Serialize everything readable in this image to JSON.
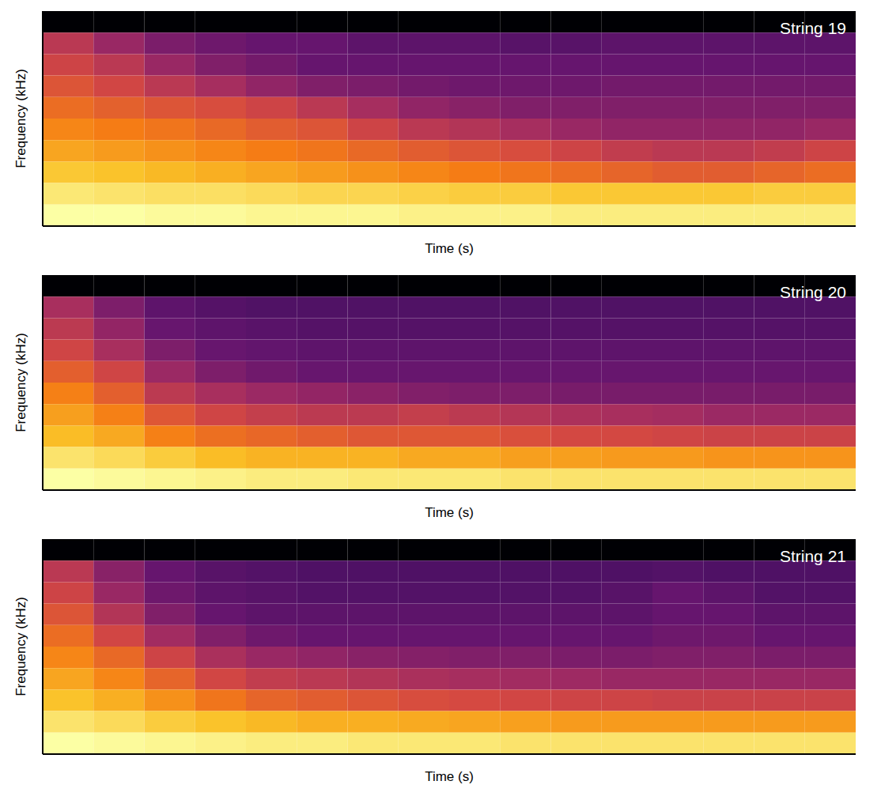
{
  "chart_data": [
    {
      "type": "heatmap",
      "title": "String 19",
      "x_label": "Time (s)",
      "y_label": "Frequency (kHz)",
      "xlim": [
        0,
        16
      ],
      "ylim": [
        0,
        10
      ],
      "tick_labels": false,
      "cells": [
        [
          0.03,
          0.03,
          0.03,
          0.03,
          0.03,
          0.03,
          0.03,
          0.03,
          0.03,
          0.03,
          0.03,
          0.03,
          0.03,
          0.03,
          0.03,
          0.03
        ],
        [
          0.5,
          0.42,
          0.35,
          0.32,
          0.3,
          0.3,
          0.28,
          0.28,
          0.28,
          0.27,
          0.27,
          0.28,
          0.28,
          0.28,
          0.28,
          0.28
        ],
        [
          0.55,
          0.5,
          0.42,
          0.36,
          0.33,
          0.3,
          0.3,
          0.3,
          0.3,
          0.3,
          0.3,
          0.3,
          0.3,
          0.3,
          0.3,
          0.3
        ],
        [
          0.6,
          0.56,
          0.5,
          0.45,
          0.4,
          0.36,
          0.35,
          0.33,
          0.32,
          0.32,
          0.32,
          0.33,
          0.33,
          0.33,
          0.33,
          0.33
        ],
        [
          0.66,
          0.63,
          0.6,
          0.58,
          0.55,
          0.5,
          0.45,
          0.4,
          0.38,
          0.36,
          0.36,
          0.36,
          0.36,
          0.36,
          0.36,
          0.36
        ],
        [
          0.72,
          0.7,
          0.68,
          0.65,
          0.62,
          0.6,
          0.55,
          0.5,
          0.48,
          0.45,
          0.42,
          0.4,
          0.4,
          0.4,
          0.4,
          0.42
        ],
        [
          0.78,
          0.76,
          0.74,
          0.72,
          0.7,
          0.68,
          0.65,
          0.62,
          0.6,
          0.58,
          0.55,
          0.52,
          0.5,
          0.5,
          0.52,
          0.55
        ],
        [
          0.85,
          0.84,
          0.82,
          0.8,
          0.78,
          0.76,
          0.74,
          0.72,
          0.7,
          0.68,
          0.66,
          0.64,
          0.62,
          0.62,
          0.64,
          0.66
        ],
        [
          0.92,
          0.91,
          0.9,
          0.9,
          0.89,
          0.88,
          0.88,
          0.87,
          0.86,
          0.86,
          0.85,
          0.85,
          0.85,
          0.85,
          0.86,
          0.86
        ],
        [
          0.97,
          0.97,
          0.96,
          0.96,
          0.95,
          0.95,
          0.95,
          0.94,
          0.94,
          0.94,
          0.93,
          0.93,
          0.93,
          0.93,
          0.93,
          0.93
        ]
      ]
    },
    {
      "type": "heatmap",
      "title": "String 20",
      "x_label": "Time (s)",
      "y_label": "Frequency (kHz)",
      "xlim": [
        0,
        16
      ],
      "ylim": [
        0,
        10
      ],
      "tick_labels": false,
      "cells": [
        [
          0.03,
          0.03,
          0.03,
          0.03,
          0.03,
          0.03,
          0.03,
          0.03,
          0.03,
          0.03,
          0.03,
          0.03,
          0.03,
          0.03,
          0.03,
          0.03
        ],
        [
          0.45,
          0.35,
          0.28,
          0.26,
          0.25,
          0.25,
          0.25,
          0.25,
          0.25,
          0.25,
          0.25,
          0.25,
          0.25,
          0.25,
          0.25,
          0.25
        ],
        [
          0.5,
          0.4,
          0.3,
          0.28,
          0.27,
          0.26,
          0.26,
          0.26,
          0.26,
          0.26,
          0.26,
          0.26,
          0.26,
          0.26,
          0.26,
          0.26
        ],
        [
          0.55,
          0.45,
          0.35,
          0.3,
          0.29,
          0.28,
          0.28,
          0.28,
          0.28,
          0.28,
          0.28,
          0.28,
          0.28,
          0.28,
          0.28,
          0.28
        ],
        [
          0.62,
          0.55,
          0.42,
          0.35,
          0.32,
          0.3,
          0.3,
          0.3,
          0.3,
          0.3,
          0.3,
          0.3,
          0.3,
          0.3,
          0.3,
          0.3
        ],
        [
          0.7,
          0.62,
          0.5,
          0.45,
          0.42,
          0.4,
          0.38,
          0.36,
          0.35,
          0.35,
          0.34,
          0.34,
          0.34,
          0.34,
          0.34,
          0.34
        ],
        [
          0.76,
          0.7,
          0.6,
          0.55,
          0.52,
          0.5,
          0.5,
          0.52,
          0.5,
          0.48,
          0.46,
          0.45,
          0.44,
          0.42,
          0.42,
          0.42
        ],
        [
          0.82,
          0.78,
          0.7,
          0.66,
          0.64,
          0.62,
          0.6,
          0.6,
          0.6,
          0.58,
          0.56,
          0.56,
          0.55,
          0.54,
          0.54,
          0.54
        ],
        [
          0.9,
          0.88,
          0.85,
          0.82,
          0.8,
          0.8,
          0.8,
          0.78,
          0.78,
          0.76,
          0.76,
          0.75,
          0.75,
          0.74,
          0.74,
          0.74
        ],
        [
          0.96,
          0.95,
          0.94,
          0.93,
          0.92,
          0.92,
          0.91,
          0.91,
          0.91,
          0.9,
          0.9,
          0.9,
          0.9,
          0.9,
          0.9,
          0.9
        ]
      ]
    },
    {
      "type": "heatmap",
      "title": "String 21",
      "x_label": "Time (s)",
      "y_label": "Frequency (kHz)",
      "xlim": [
        0,
        16
      ],
      "ylim": [
        0,
        10
      ],
      "tick_labels": false,
      "cells": [
        [
          0.03,
          0.03,
          0.03,
          0.03,
          0.03,
          0.03,
          0.03,
          0.03,
          0.03,
          0.03,
          0.03,
          0.03,
          0.03,
          0.03,
          0.03,
          0.03
        ],
        [
          0.5,
          0.38,
          0.3,
          0.27,
          0.26,
          0.25,
          0.25,
          0.25,
          0.25,
          0.25,
          0.25,
          0.25,
          0.26,
          0.25,
          0.25,
          0.25
        ],
        [
          0.55,
          0.42,
          0.32,
          0.28,
          0.27,
          0.26,
          0.26,
          0.26,
          0.26,
          0.26,
          0.26,
          0.27,
          0.3,
          0.28,
          0.26,
          0.26
        ],
        [
          0.6,
          0.48,
          0.36,
          0.3,
          0.28,
          0.28,
          0.28,
          0.28,
          0.28,
          0.28,
          0.28,
          0.28,
          0.3,
          0.3,
          0.28,
          0.28
        ],
        [
          0.66,
          0.56,
          0.44,
          0.36,
          0.32,
          0.3,
          0.3,
          0.3,
          0.3,
          0.3,
          0.3,
          0.3,
          0.32,
          0.32,
          0.3,
          0.3
        ],
        [
          0.72,
          0.65,
          0.55,
          0.46,
          0.42,
          0.4,
          0.38,
          0.37,
          0.36,
          0.36,
          0.35,
          0.35,
          0.36,
          0.36,
          0.35,
          0.35
        ],
        [
          0.78,
          0.72,
          0.64,
          0.56,
          0.52,
          0.5,
          0.48,
          0.46,
          0.45,
          0.44,
          0.43,
          0.42,
          0.42,
          0.42,
          0.42,
          0.42
        ],
        [
          0.84,
          0.8,
          0.74,
          0.68,
          0.64,
          0.62,
          0.6,
          0.58,
          0.57,
          0.56,
          0.55,
          0.55,
          0.54,
          0.54,
          0.54,
          0.54
        ],
        [
          0.91,
          0.89,
          0.86,
          0.84,
          0.82,
          0.8,
          0.8,
          0.79,
          0.78,
          0.77,
          0.76,
          0.76,
          0.76,
          0.76,
          0.76,
          0.76
        ],
        [
          0.97,
          0.96,
          0.95,
          0.94,
          0.93,
          0.93,
          0.92,
          0.92,
          0.92,
          0.91,
          0.91,
          0.91,
          0.91,
          0.91,
          0.91,
          0.91
        ]
      ]
    }
  ]
}
